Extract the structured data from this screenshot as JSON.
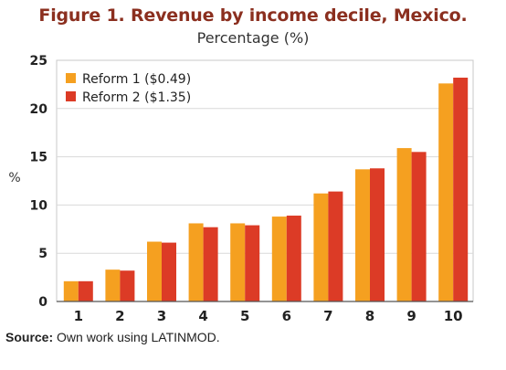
{
  "title": "Figure 1. Revenue by income decile, Mexico.",
  "subtitle": "Percentage (%)",
  "source": {
    "label": "Source:",
    "text": "Own work using LATINMOD."
  },
  "chart_data": {
    "type": "bar",
    "title": "Figure 1. Revenue by income decile, Mexico.",
    "subtitle": "Percentage (%)",
    "xlabel": "",
    "ylabel": "%",
    "categories": [
      "1",
      "2",
      "3",
      "4",
      "5",
      "6",
      "7",
      "8",
      "9",
      "10"
    ],
    "ylim": [
      0,
      25
    ],
    "yticks": [
      0,
      5,
      10,
      15,
      20,
      25
    ],
    "grid": true,
    "legend": "top-left",
    "series": [
      {
        "name": "Reform 1 ($0.49)",
        "color": "#f5a020",
        "values": [
          2.1,
          3.3,
          6.2,
          8.1,
          8.1,
          8.8,
          11.2,
          13.7,
          15.9,
          22.6
        ]
      },
      {
        "name": "Reform 2 ($1.35)",
        "color": "#dc3b26",
        "values": [
          2.1,
          3.2,
          6.1,
          7.7,
          7.9,
          8.9,
          11.4,
          13.8,
          15.5,
          23.2
        ]
      }
    ]
  }
}
